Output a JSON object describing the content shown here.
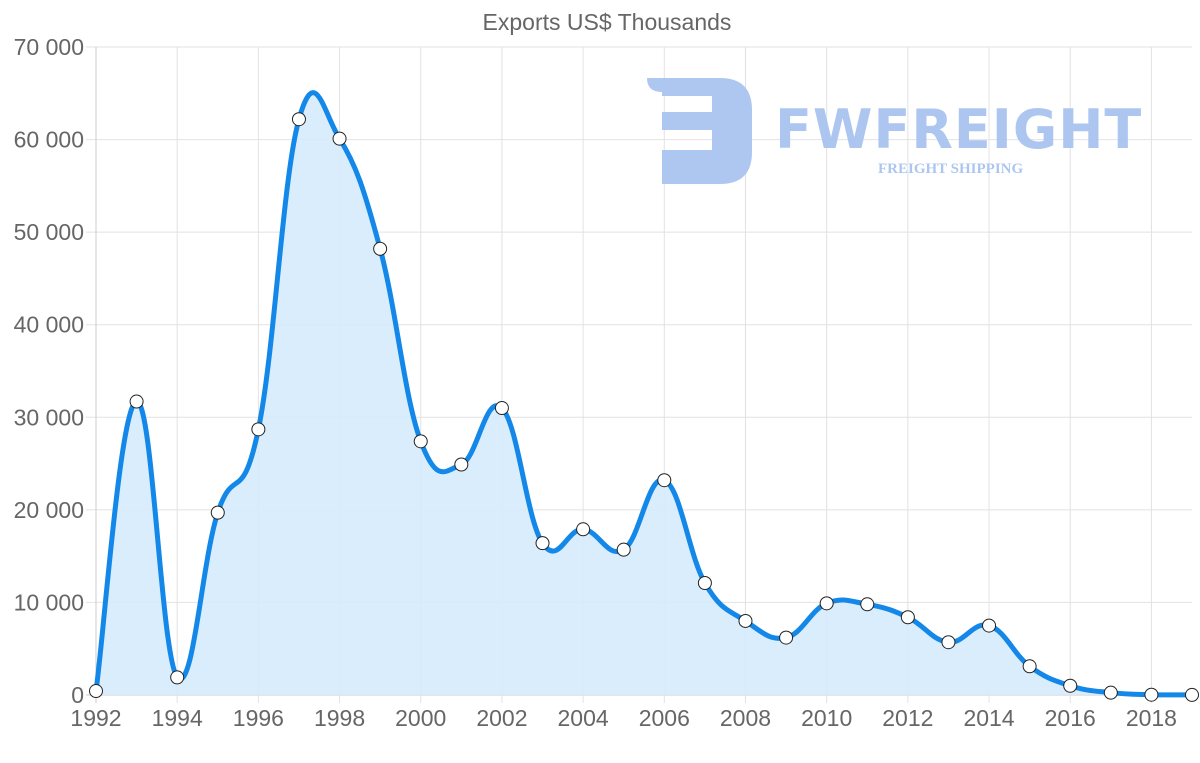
{
  "chart_data": {
    "type": "area",
    "title": "Exports US$ Thousands",
    "xlabel": "",
    "ylabel": "",
    "x": [
      1992,
      1993,
      1994,
      1995,
      1996,
      1997,
      1998,
      1999,
      2000,
      2001,
      2002,
      2003,
      2004,
      2005,
      2006,
      2007,
      2008,
      2009,
      2010,
      2011,
      2012,
      2013,
      2014,
      2015,
      2016,
      2017,
      2018,
      2019
    ],
    "series": [
      {
        "name": "Exports US$ Thousands",
        "color": "#1388e8",
        "fill": "#d6ebfc",
        "values": [
          430,
          31700,
          1900,
          19700,
          28700,
          62200,
          60100,
          48200,
          27400,
          24900,
          31000,
          16400,
          17900,
          15700,
          23200,
          12100,
          8000,
          6200,
          9900,
          9800,
          8400,
          5700,
          7500,
          3100,
          1000,
          250,
          30,
          10
        ]
      }
    ],
    "x_tick_labels": [
      "1992",
      "1994",
      "1996",
      "1998",
      "2000",
      "2002",
      "2004",
      "2006",
      "2008",
      "2010",
      "2012",
      "2014",
      "2016",
      "2018"
    ],
    "y_tick_labels": [
      "0",
      "10 000",
      "20 000",
      "30 000",
      "40 000",
      "50 000",
      "60 000",
      "70 000"
    ],
    "ylim": [
      0,
      70000
    ],
    "xlim": [
      1992,
      2019
    ],
    "grid": true,
    "legend": "none"
  },
  "watermark": {
    "brand": "FWFREIGHT",
    "tagline": "FREIGHT SHIPPING",
    "color": "#a9c4f0"
  }
}
